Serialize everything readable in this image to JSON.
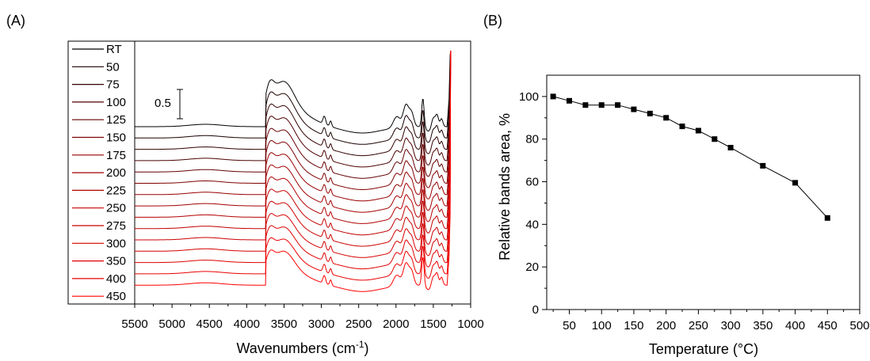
{
  "chart_data": [
    {
      "panel_label": "(A)",
      "type": "line",
      "xlabel": "Wavenumbers (cm",
      "xlabel_sup": "-1",
      "xlabel_close": ")",
      "xlim": [
        5500,
        1000
      ],
      "x_reversed": true,
      "xticks": [
        "5500",
        "5000",
        "4500",
        "4000",
        "3500",
        "3000",
        "2500",
        "2000",
        "1500",
        "1000"
      ],
      "scale_bar": {
        "label": "0.5",
        "value": 0.5
      },
      "legend_position": "left",
      "series_colors": [
        "#000000",
        "#1a0000",
        "#330000",
        "#4d0000",
        "#660000",
        "#800000",
        "#990000",
        "#a30000",
        "#b30000",
        "#c20000",
        "#cc0000",
        "#d60000",
        "#e00000",
        "#eb0000",
        "#ff0000"
      ],
      "series": [
        {
          "name": "RT"
        },
        {
          "name": "50"
        },
        {
          "name": "75"
        },
        {
          "name": "100"
        },
        {
          "name": "125"
        },
        {
          "name": "150"
        },
        {
          "name": "175"
        },
        {
          "name": "200"
        },
        {
          "name": "225"
        },
        {
          "name": "250"
        },
        {
          "name": "275"
        },
        {
          "name": "300"
        },
        {
          "name": "350"
        },
        {
          "name": "400"
        },
        {
          "name": "450"
        }
      ]
    },
    {
      "panel_label": "(B)",
      "type": "scatter",
      "xlabel": "Temperature (°C)",
      "ylabel": "Relative bands area, %",
      "xlim": [
        15,
        500
      ],
      "ylim": [
        0,
        110
      ],
      "xticks": [
        "50",
        "100",
        "150",
        "200",
        "250",
        "300",
        "350",
        "400",
        "450",
        "500"
      ],
      "yticks": [
        "0",
        "20",
        "40",
        "60",
        "80",
        "100"
      ],
      "marker_color": "#000000",
      "x": [
        25,
        50,
        75,
        100,
        125,
        150,
        175,
        200,
        225,
        250,
        275,
        300,
        350,
        400,
        450
      ],
      "y": [
        100,
        98,
        96,
        96,
        96,
        94,
        92,
        90,
        86,
        84,
        80,
        76,
        67.5,
        59.5,
        43
      ]
    }
  ]
}
